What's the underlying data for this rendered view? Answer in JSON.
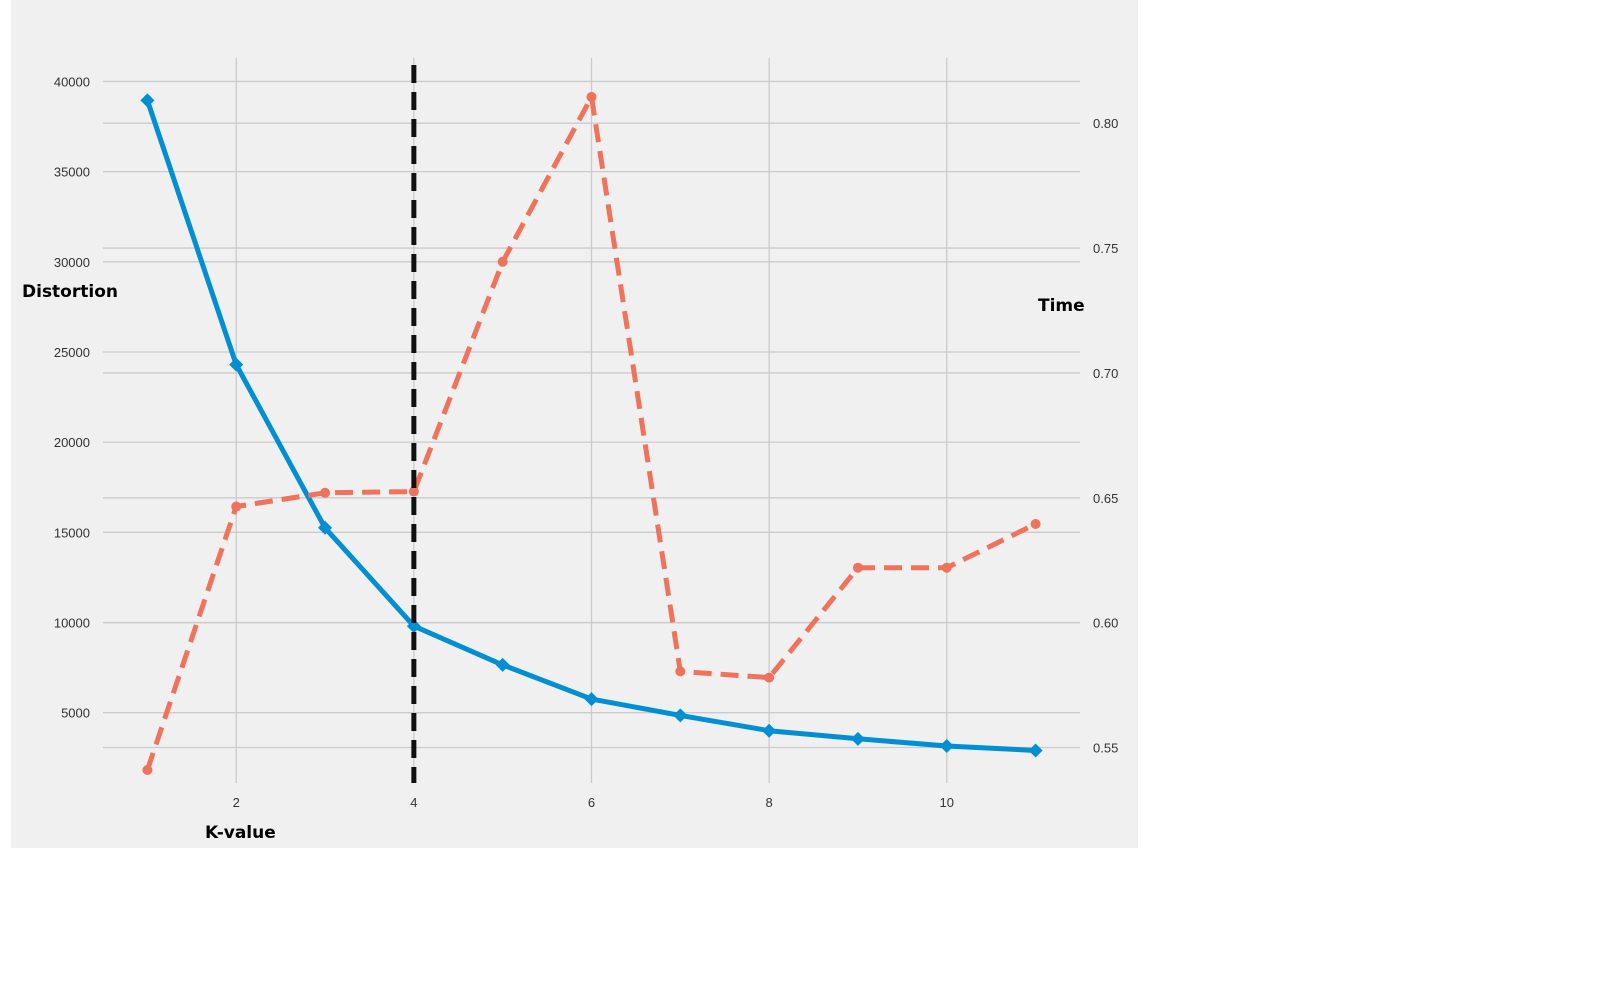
{
  "chart_data": {
    "type": "line",
    "title": "",
    "xlabel": "K-value",
    "ylabel_left": "Distortion",
    "ylabel_right": "Time",
    "x": [
      1,
      2,
      3,
      4,
      5,
      6,
      7,
      8,
      9,
      10,
      11
    ],
    "x_ticks": [
      2,
      4,
      6,
      8,
      10
    ],
    "xlim": [
      0.5,
      11.5
    ],
    "y_left_ticks": [
      5000,
      10000,
      15000,
      20000,
      25000,
      30000,
      35000,
      40000
    ],
    "y_left_tick_labels": [
      "5000",
      "10000",
      "15000",
      "20000",
      "25000",
      "30000",
      "35000",
      "40000"
    ],
    "ylim_left": [
      1100,
      41300
    ],
    "y_right_ticks": [
      0.55,
      0.6,
      0.65,
      0.7,
      0.75,
      0.8
    ],
    "y_right_tick_labels": [
      "0.55",
      "0.60",
      "0.65",
      "0.70",
      "0.75",
      "0.80"
    ],
    "ylim_right": [
      0.5358,
      0.8261
    ],
    "grid": true,
    "background": "#f0f0f0",
    "series": [
      {
        "axis": "left",
        "color": "#008fd5",
        "style": "solid",
        "marker": "diamond",
        "values": [
          38950,
          24300,
          15250,
          9800,
          7650,
          5750,
          4850,
          4000,
          3550,
          3150,
          2900
        ]
      },
      {
        "axis": "right",
        "color": "#f0725a",
        "style": "dashed",
        "marker": "circle",
        "values": [
          0.541,
          0.6465,
          0.652,
          0.6525,
          0.7445,
          0.8105,
          0.5805,
          0.578,
          0.622,
          0.622,
          0.6395
        ]
      }
    ],
    "vline": {
      "x": 4,
      "color": "#111111",
      "style": "dashed"
    }
  }
}
